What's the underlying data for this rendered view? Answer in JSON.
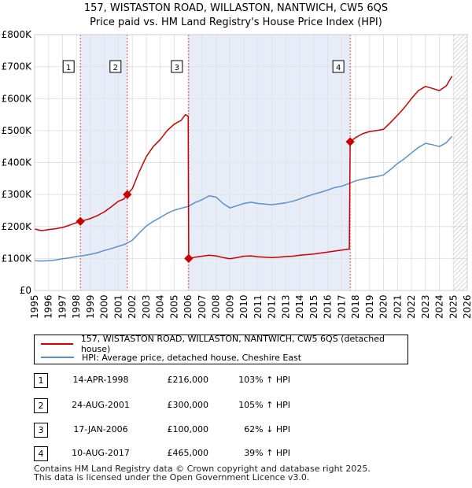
{
  "chart_data": {
    "type": "line",
    "title": "157, WISTASTON ROAD, WILLASTON, NANTWICH, CW5 6QS",
    "subtitle": "Price paid vs. HM Land Registry's House Price Index (HPI)",
    "x_ticks": [
      "1995",
      "1996",
      "1997",
      "1998",
      "1999",
      "2000",
      "2001",
      "2002",
      "2003",
      "2004",
      "2005",
      "2006",
      "2007",
      "2008",
      "2009",
      "2010",
      "2011",
      "2012",
      "2013",
      "2014",
      "2015",
      "2016",
      "2017",
      "2018",
      "2019",
      "2020",
      "2021",
      "2022",
      "2023",
      "2024",
      "2025",
      "2026"
    ],
    "y_ticks": [
      "£0",
      "£100K",
      "£200K",
      "£300K",
      "£400K",
      "£500K",
      "£600K",
      "£700K",
      "£800K"
    ],
    "xlim": [
      1995,
      2026
    ],
    "ylim": [
      0,
      800000
    ],
    "grid": true,
    "forecast_start": 2025.0,
    "series": [
      {
        "name": "157, WISTASTON ROAD, WILLASTON, NANTWICH, CW5 6QS (detached house)",
        "color": "#cc0000",
        "points": [
          [
            1995.0,
            192000
          ],
          [
            1995.5,
            187000
          ],
          [
            1996.0,
            190000
          ],
          [
            1996.5,
            193000
          ],
          [
            1997.0,
            197000
          ],
          [
            1997.5,
            204000
          ],
          [
            1998.0,
            212000
          ],
          [
            1998.28,
            216000
          ],
          [
            1998.7,
            221000
          ],
          [
            1999.0,
            225000
          ],
          [
            1999.5,
            234000
          ],
          [
            2000.0,
            246000
          ],
          [
            2000.5,
            262000
          ],
          [
            2001.0,
            279000
          ],
          [
            2001.4,
            286000
          ],
          [
            2001.64,
            300000
          ],
          [
            2002.0,
            318000
          ],
          [
            2002.5,
            372000
          ],
          [
            2003.0,
            418000
          ],
          [
            2003.5,
            450000
          ],
          [
            2004.0,
            472000
          ],
          [
            2004.5,
            500000
          ],
          [
            2005.0,
            520000
          ],
          [
            2005.5,
            532000
          ],
          [
            2005.8,
            550000
          ],
          [
            2006.0,
            545000
          ],
          [
            2006.04,
            100000
          ],
          [
            2006.5,
            104000
          ],
          [
            2007.0,
            107000
          ],
          [
            2007.5,
            110000
          ],
          [
            2008.0,
            108000
          ],
          [
            2008.5,
            103000
          ],
          [
            2009.0,
            99000
          ],
          [
            2009.5,
            103000
          ],
          [
            2010.0,
            107000
          ],
          [
            2010.5,
            108000
          ],
          [
            2011.0,
            105000
          ],
          [
            2011.5,
            104000
          ],
          [
            2012.0,
            103000
          ],
          [
            2012.5,
            104000
          ],
          [
            2013.0,
            106000
          ],
          [
            2013.5,
            107000
          ],
          [
            2014.0,
            110000
          ],
          [
            2014.5,
            112000
          ],
          [
            2015.0,
            114000
          ],
          [
            2015.5,
            117000
          ],
          [
            2016.0,
            120000
          ],
          [
            2016.5,
            123000
          ],
          [
            2017.0,
            126000
          ],
          [
            2017.55,
            130000
          ],
          [
            2017.61,
            465000
          ],
          [
            2018.0,
            478000
          ],
          [
            2018.5,
            490000
          ],
          [
            2019.0,
            497000
          ],
          [
            2019.5,
            500000
          ],
          [
            2020.0,
            504000
          ],
          [
            2020.5,
            525000
          ],
          [
            2021.0,
            548000
          ],
          [
            2021.5,
            572000
          ],
          [
            2022.0,
            600000
          ],
          [
            2022.5,
            625000
          ],
          [
            2023.0,
            638000
          ],
          [
            2023.5,
            632000
          ],
          [
            2024.0,
            625000
          ],
          [
            2024.5,
            640000
          ],
          [
            2024.9,
            670000
          ]
        ]
      },
      {
        "name": "HPI: Average price, detached house, Cheshire East",
        "color": "#5b8fd0",
        "points": [
          [
            1995.0,
            93000
          ],
          [
            1995.5,
            92000
          ],
          [
            1996.0,
            93000
          ],
          [
            1996.5,
            95000
          ],
          [
            1997.0,
            99000
          ],
          [
            1997.5,
            102000
          ],
          [
            1998.0,
            106000
          ],
          [
            1998.5,
            109000
          ],
          [
            1999.0,
            113000
          ],
          [
            1999.5,
            118000
          ],
          [
            2000.0,
            125000
          ],
          [
            2000.5,
            131000
          ],
          [
            2001.0,
            138000
          ],
          [
            2001.5,
            145000
          ],
          [
            2002.0,
            157000
          ],
          [
            2002.5,
            180000
          ],
          [
            2003.0,
            201000
          ],
          [
            2003.5,
            216000
          ],
          [
            2004.0,
            228000
          ],
          [
            2004.5,
            241000
          ],
          [
            2005.0,
            251000
          ],
          [
            2005.5,
            257000
          ],
          [
            2006.0,
            263000
          ],
          [
            2006.5,
            275000
          ],
          [
            2007.0,
            284000
          ],
          [
            2007.5,
            296000
          ],
          [
            2008.0,
            292000
          ],
          [
            2008.5,
            272000
          ],
          [
            2009.0,
            258000
          ],
          [
            2009.5,
            265000
          ],
          [
            2010.0,
            272000
          ],
          [
            2010.5,
            276000
          ],
          [
            2011.0,
            272000
          ],
          [
            2011.5,
            270000
          ],
          [
            2012.0,
            268000
          ],
          [
            2012.5,
            271000
          ],
          [
            2013.0,
            274000
          ],
          [
            2013.5,
            279000
          ],
          [
            2014.0,
            286000
          ],
          [
            2014.5,
            294000
          ],
          [
            2015.0,
            301000
          ],
          [
            2015.5,
            307000
          ],
          [
            2016.0,
            314000
          ],
          [
            2016.5,
            322000
          ],
          [
            2017.0,
            326000
          ],
          [
            2017.5,
            334000
          ],
          [
            2018.0,
            343000
          ],
          [
            2018.5,
            348000
          ],
          [
            2019.0,
            353000
          ],
          [
            2019.5,
            356000
          ],
          [
            2020.0,
            361000
          ],
          [
            2020.5,
            378000
          ],
          [
            2021.0,
            397000
          ],
          [
            2021.5,
            412000
          ],
          [
            2022.0,
            430000
          ],
          [
            2022.5,
            447000
          ],
          [
            2023.0,
            460000
          ],
          [
            2023.5,
            456000
          ],
          [
            2024.0,
            450000
          ],
          [
            2024.5,
            462000
          ],
          [
            2024.9,
            482000
          ]
        ]
      }
    ],
    "transactions": [
      {
        "label": "1",
        "date": "14-APR-1998",
        "x": 1998.28,
        "price": 216000,
        "price_text": "£216,000",
        "hpi": "103% ↑ HPI"
      },
      {
        "label": "2",
        "date": "24-AUG-2001",
        "x": 2001.64,
        "price": 300000,
        "price_text": "£300,000",
        "hpi": "105% ↑ HPI"
      },
      {
        "label": "3",
        "date": "17-JAN-2006",
        "x": 2006.04,
        "price": 100000,
        "price_text": "£100,000",
        "hpi": "62% ↓ HPI"
      },
      {
        "label": "4",
        "date": "10-AUG-2017",
        "x": 2017.61,
        "price": 465000,
        "price_text": "£465,000",
        "hpi": "39% ↑ HPI"
      }
    ],
    "shaded_ranges": [
      [
        1998.28,
        2001.64
      ],
      [
        2006.04,
        2017.61
      ]
    ]
  },
  "legend": {
    "property": "157, WISTASTON ROAD, WILLASTON, NANTWICH, CW5 6QS (detached house)",
    "hpi": "HPI: Average price, detached house, Cheshire East"
  },
  "footer": {
    "line1": "Contains HM Land Registry data © Crown copyright and database right 2025.",
    "line2": "This data is licensed under the Open Government Licence v3.0."
  }
}
